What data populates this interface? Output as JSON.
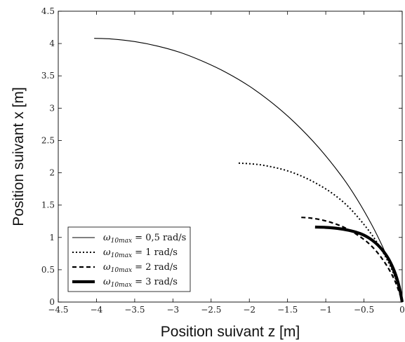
{
  "chart_data": {
    "type": "line",
    "xlabel": "Position suivant z [m]",
    "ylabel": "Position suivant x [m]",
    "xlim": [
      -4.5,
      0
    ],
    "ylim": [
      0,
      4.5
    ],
    "x_ticks": [
      -4.5,
      -4,
      -3.5,
      -3,
      -2.5,
      -2,
      -1.5,
      -1,
      -0.5,
      0
    ],
    "x_tick_labels": [
      "−4.5",
      "−4",
      "−3.5",
      "−3",
      "−2.5",
      "−2",
      "−1.5",
      "−1",
      "−0.5",
      "0"
    ],
    "y_ticks": [
      0,
      0.5,
      1,
      1.5,
      2,
      2.5,
      3,
      3.5,
      4,
      4.5
    ],
    "y_tick_labels": [
      "0",
      "0.5",
      "1",
      "1.5",
      "2",
      "2.5",
      "3",
      "3.5",
      "4",
      "4.5"
    ],
    "grid": false,
    "legend_position": "bottom-left",
    "series": [
      {
        "legend": {
          "symbol": "ω",
          "subscript": "10max",
          "text": " = 0,5 rad/s"
        },
        "style": "solid",
        "color": "#000000",
        "x": [
          -4.03,
          -3.8,
          -3.5,
          -3.2,
          -2.9,
          -2.6,
          -2.3,
          -2.0,
          -1.7,
          -1.4,
          -1.1,
          -0.8,
          -0.6,
          -0.4,
          -0.25,
          -0.12,
          -0.04,
          0.0
        ],
        "y": [
          4.08,
          4.07,
          4.03,
          3.96,
          3.86,
          3.72,
          3.55,
          3.34,
          3.08,
          2.77,
          2.4,
          1.96,
          1.61,
          1.2,
          0.84,
          0.47,
          0.2,
          0.0
        ]
      },
      {
        "legend": {
          "symbol": "ω",
          "subscript": "10max",
          "text": " = 1 rad/s"
        },
        "style": "dotted",
        "color": "#000000",
        "x": [
          -2.14,
          -1.9,
          -1.7,
          -1.5,
          -1.3,
          -1.1,
          -0.9,
          -0.7,
          -0.5,
          -0.35,
          -0.2,
          -0.1,
          -0.03,
          0.0
        ],
        "y": [
          2.15,
          2.13,
          2.09,
          2.03,
          1.94,
          1.82,
          1.67,
          1.47,
          1.2,
          0.96,
          0.66,
          0.4,
          0.15,
          0.0
        ]
      },
      {
        "legend": {
          "symbol": "ω",
          "subscript": "10max",
          "text": " = 2 rad/s"
        },
        "style": "dashed",
        "color": "#000000",
        "x": [
          -1.32,
          -1.2,
          -1.05,
          -0.9,
          -0.75,
          -0.6,
          -0.45,
          -0.32,
          -0.2,
          -0.1,
          -0.03,
          0.0
        ],
        "y": [
          1.31,
          1.3,
          1.27,
          1.22,
          1.15,
          1.05,
          0.92,
          0.76,
          0.56,
          0.34,
          0.12,
          0.0
        ]
      },
      {
        "legend": {
          "symbol": "ω",
          "subscript": "10max",
          "text": " = 3 rad/s"
        },
        "style": "thick",
        "color": "#000000",
        "x": [
          -1.14,
          -1.0,
          -0.85,
          -0.7,
          -0.55,
          -0.42,
          -0.3,
          -0.19,
          -0.1,
          -0.04,
          0.0
        ],
        "y": [
          1.16,
          1.155,
          1.14,
          1.11,
          1.06,
          0.98,
          0.86,
          0.69,
          0.47,
          0.24,
          0.0
        ]
      }
    ]
  }
}
